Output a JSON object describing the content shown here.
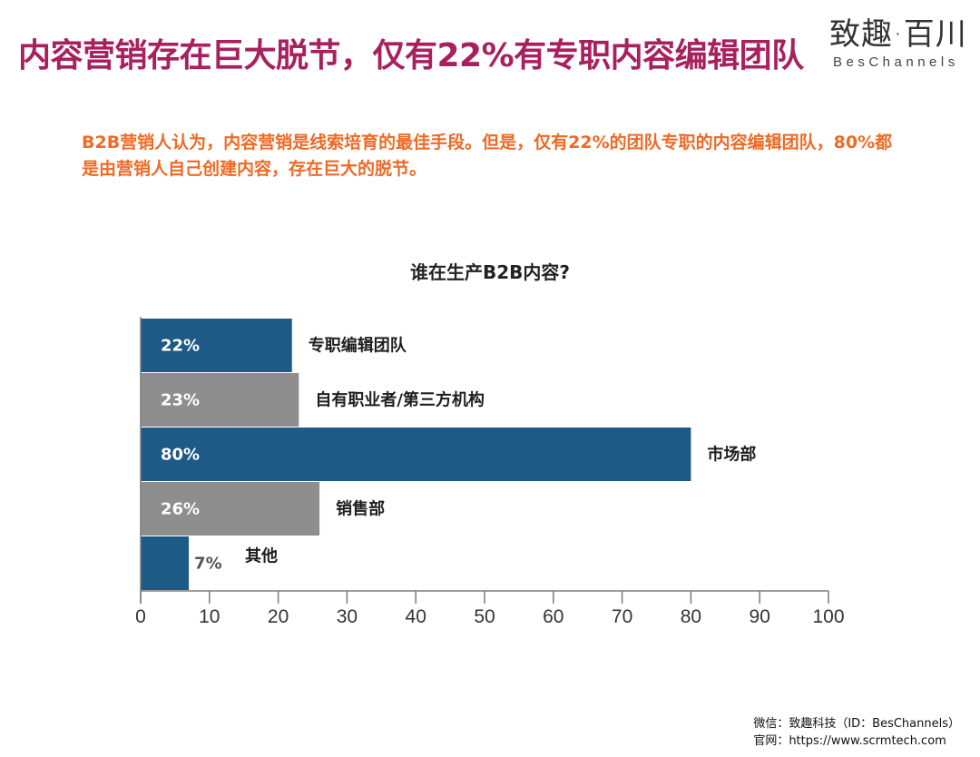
{
  "header": {
    "title": "内容营销存在巨大脱节，仅有22%有专职内容编辑团队",
    "logo_main": "致趣·百川",
    "logo_sub": "BesChannels"
  },
  "subtitle": "B2B营销人认为，内容营销是线索培育的最佳手段。但是，仅有22%的团队专职的内容编辑团队，80%都是由营销人自己创建内容，存在巨大的脱节。",
  "chart_data": {
    "type": "bar",
    "orientation": "horizontal",
    "title": "谁在生产B2B内容?",
    "categories": [
      "专职编辑团队",
      "自有职业者/第三方机构",
      "市场部",
      "销售部",
      "其他"
    ],
    "values": [
      22,
      23,
      80,
      26,
      7
    ],
    "value_labels": [
      "22%",
      "23%",
      "80%",
      "26%",
      "7%"
    ],
    "xlim": [
      0,
      100
    ],
    "xticks": [
      0,
      10,
      20,
      30,
      40,
      50,
      60,
      70,
      80,
      90,
      100
    ],
    "grid": false,
    "colors": [
      "#1d5a85",
      "#8e8e8e",
      "#1d5a85",
      "#8e8e8e",
      "#1d5a85"
    ]
  },
  "footer": {
    "wechat": "微信：致趣科技（ID：BesChannels）",
    "website": "官网：https://www.scrmtech.com"
  }
}
